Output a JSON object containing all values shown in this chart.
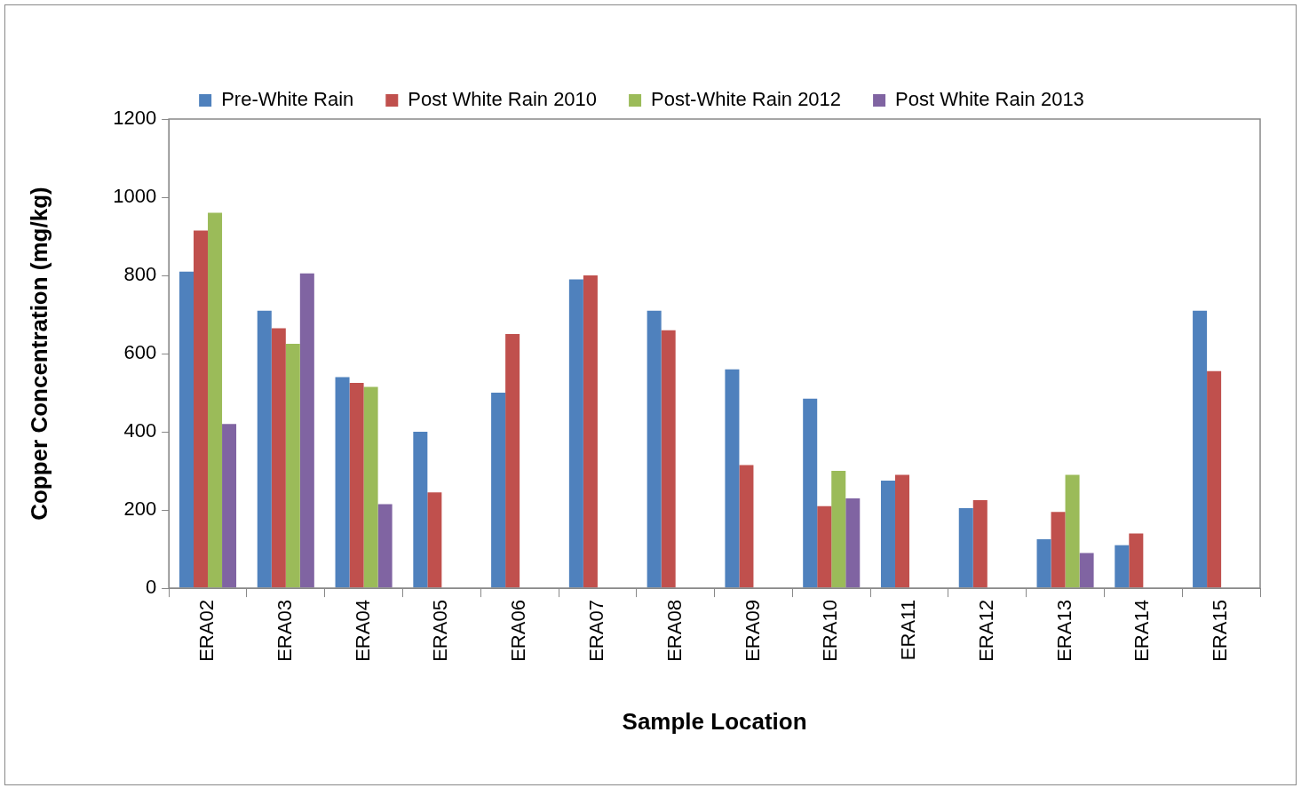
{
  "chart_data": {
    "type": "bar",
    "xlabel": "Sample Location",
    "ylabel": "Copper Concentration (mg/kg)",
    "categories": [
      "ERA02",
      "ERA03",
      "ERA04",
      "ERA05",
      "ERA06",
      "ERA07",
      "ERA08",
      "ERA09",
      "ERA10",
      "ERA11",
      "ERA12",
      "ERA13",
      "ERA14",
      "ERA15"
    ],
    "series": [
      {
        "name": "Pre-White Rain",
        "color": "#4f81bd",
        "values": [
          810,
          710,
          540,
          400,
          500,
          790,
          710,
          560,
          485,
          275,
          205,
          125,
          110,
          710
        ]
      },
      {
        "name": "Post White Rain 2010",
        "color": "#c0504d",
        "values": [
          915,
          665,
          525,
          245,
          650,
          800,
          660,
          315,
          210,
          290,
          225,
          195,
          140,
          555
        ]
      },
      {
        "name": "Post-White Rain 2012",
        "color": "#9bbb59",
        "values": [
          960,
          625,
          515,
          null,
          null,
          null,
          null,
          null,
          300,
          null,
          null,
          290,
          null,
          null
        ]
      },
      {
        "name": "Post White Rain 2013",
        "color": "#8064a2",
        "values": [
          420,
          805,
          215,
          null,
          null,
          null,
          null,
          null,
          230,
          null,
          null,
          90,
          null,
          null
        ]
      }
    ],
    "ylim": [
      0,
      1200
    ],
    "yticks": [
      0,
      200,
      400,
      600,
      800,
      1000,
      1200
    ],
    "grid": false,
    "legend": "top"
  }
}
